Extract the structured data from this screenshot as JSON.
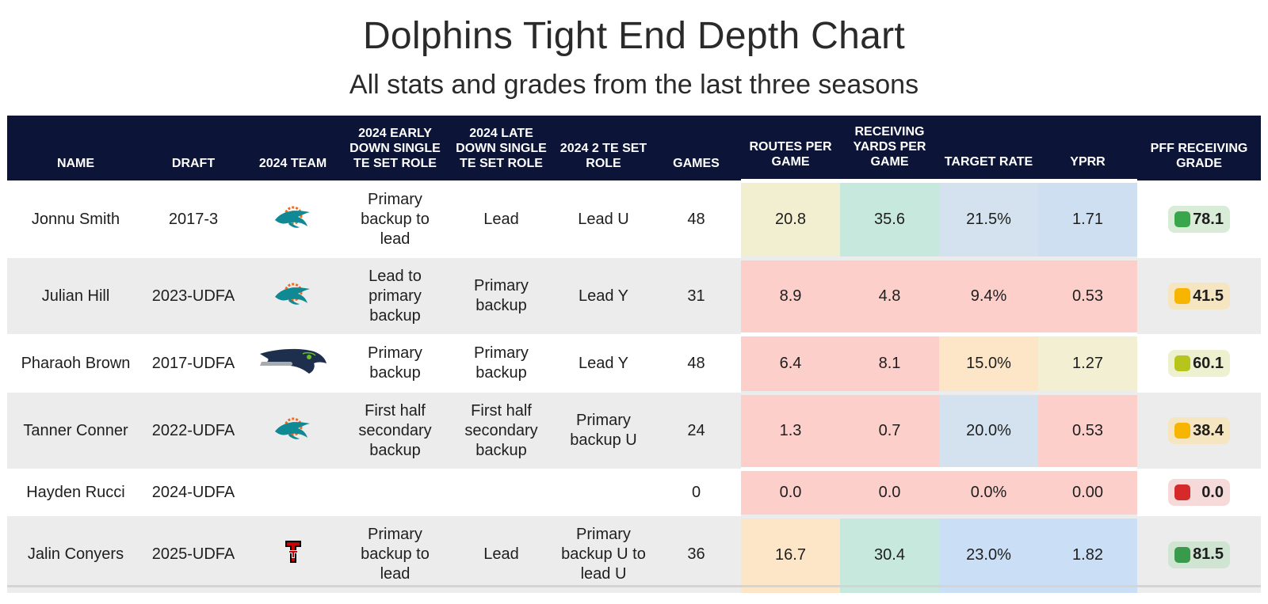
{
  "title": "Dolphins Tight End Depth Chart",
  "subtitle": "All stats and grades from the last three seasons",
  "columns": {
    "name": "NAME",
    "draft": "DRAFT",
    "team": "2024 TEAM",
    "early": "2024 EARLY DOWN SINGLE TE SET ROLE",
    "late": "2024 LATE DOWN SINGLE TE SET ROLE",
    "two_te": "2024 2 TE SET ROLE",
    "games": "GAMES",
    "routes": "ROUTES PER GAME",
    "yards": "RECEIVING YARDS PER GAME",
    "target": "TARGET RATE",
    "yprr": "YPRR",
    "grade": "PFF RECEIVING GRADE"
  },
  "rows": [
    {
      "name": "Jonnu Smith",
      "draft": "2017-3",
      "team_logo": "dolphins-logo-icon",
      "early": "Primary backup to lead",
      "late": "Lead",
      "two_te": "Lead U",
      "games": "48",
      "routes": "20.8",
      "yards": "35.6",
      "target": "21.5%",
      "yprr": "1.71",
      "grade": "78.1",
      "colors": {
        "routes": "#f1efcf",
        "yards": "#c7e8dc",
        "target": "#d3e2ee",
        "yprr": "#cfdff2",
        "grade_dot": "#3aa64b",
        "grade_bg": "#d8ecd8"
      }
    },
    {
      "name": "Julian Hill",
      "draft": "2023-UDFA",
      "team_logo": "dolphins-logo-icon",
      "early": "Lead to primary backup",
      "late": "Primary backup",
      "two_te": "Lead Y",
      "games": "31",
      "routes": "8.9",
      "yards": "4.8",
      "target": "9.4%",
      "yprr": "0.53",
      "grade": "41.5",
      "colors": {
        "routes": "#fdcfca",
        "yards": "#fdcfca",
        "target": "#fdcfca",
        "yprr": "#fdcfca",
        "grade_dot": "#f7b500",
        "grade_bg": "#f5e5c0"
      }
    },
    {
      "name": "Pharaoh Brown",
      "draft": "2017-UDFA",
      "team_logo": "seahawks-logo-icon",
      "early": "Primary backup",
      "late": "Primary backup",
      "two_te": "Lead Y",
      "games": "48",
      "routes": "6.4",
      "yards": "8.1",
      "target": "15.0%",
      "yprr": "1.27",
      "grade": "60.1",
      "colors": {
        "routes": "#fdcfca",
        "yards": "#fdcfca",
        "target": "#fde6c7",
        "yprr": "#f3efd2",
        "grade_dot": "#b6c41c",
        "grade_bg": "#eef1d0"
      }
    },
    {
      "name": "Tanner Conner",
      "draft": "2022-UDFA",
      "team_logo": "dolphins-logo-icon",
      "early": "First half secondary backup",
      "late": "First half secondary backup",
      "two_te": "Primary backup U",
      "games": "24",
      "routes": "1.3",
      "yards": "0.7",
      "target": "20.0%",
      "yprr": "0.53",
      "grade": "38.4",
      "colors": {
        "routes": "#fdcfca",
        "yards": "#fdcfca",
        "target": "#d3e2ee",
        "yprr": "#fdcfca",
        "grade_dot": "#f7b500",
        "grade_bg": "#f5e5c0"
      }
    },
    {
      "name": "Hayden Rucci",
      "draft": "2024-UDFA",
      "team_logo": "",
      "early": "",
      "late": "",
      "two_te": "",
      "games": "0",
      "routes": "0.0",
      "yards": "0.0",
      "target": "0.0%",
      "yprr": "0.00",
      "grade": "0.0",
      "colors": {
        "routes": "#fdcfca",
        "yards": "#fdcfca",
        "target": "#fdcfca",
        "yprr": "#fdcfca",
        "grade_dot": "#d62a2a",
        "grade_bg": "#f6dada"
      }
    },
    {
      "name": "Jalin Conyers",
      "draft": "2025-UDFA",
      "team_logo": "texas-tech-logo-icon",
      "early": "Primary backup to lead",
      "late": "Lead",
      "two_te": "Primary backup U to lead U",
      "games": "36",
      "routes": "16.7",
      "yards": "30.4",
      "target": "23.0%",
      "yprr": "1.82",
      "grade": "81.5",
      "colors": {
        "routes": "#fde6c7",
        "yards": "#c7e8dc",
        "target": "#cadef6",
        "yprr": "#cadef6",
        "grade_dot": "#3a9a4b",
        "grade_bg": "#cfe5d2"
      }
    }
  ]
}
